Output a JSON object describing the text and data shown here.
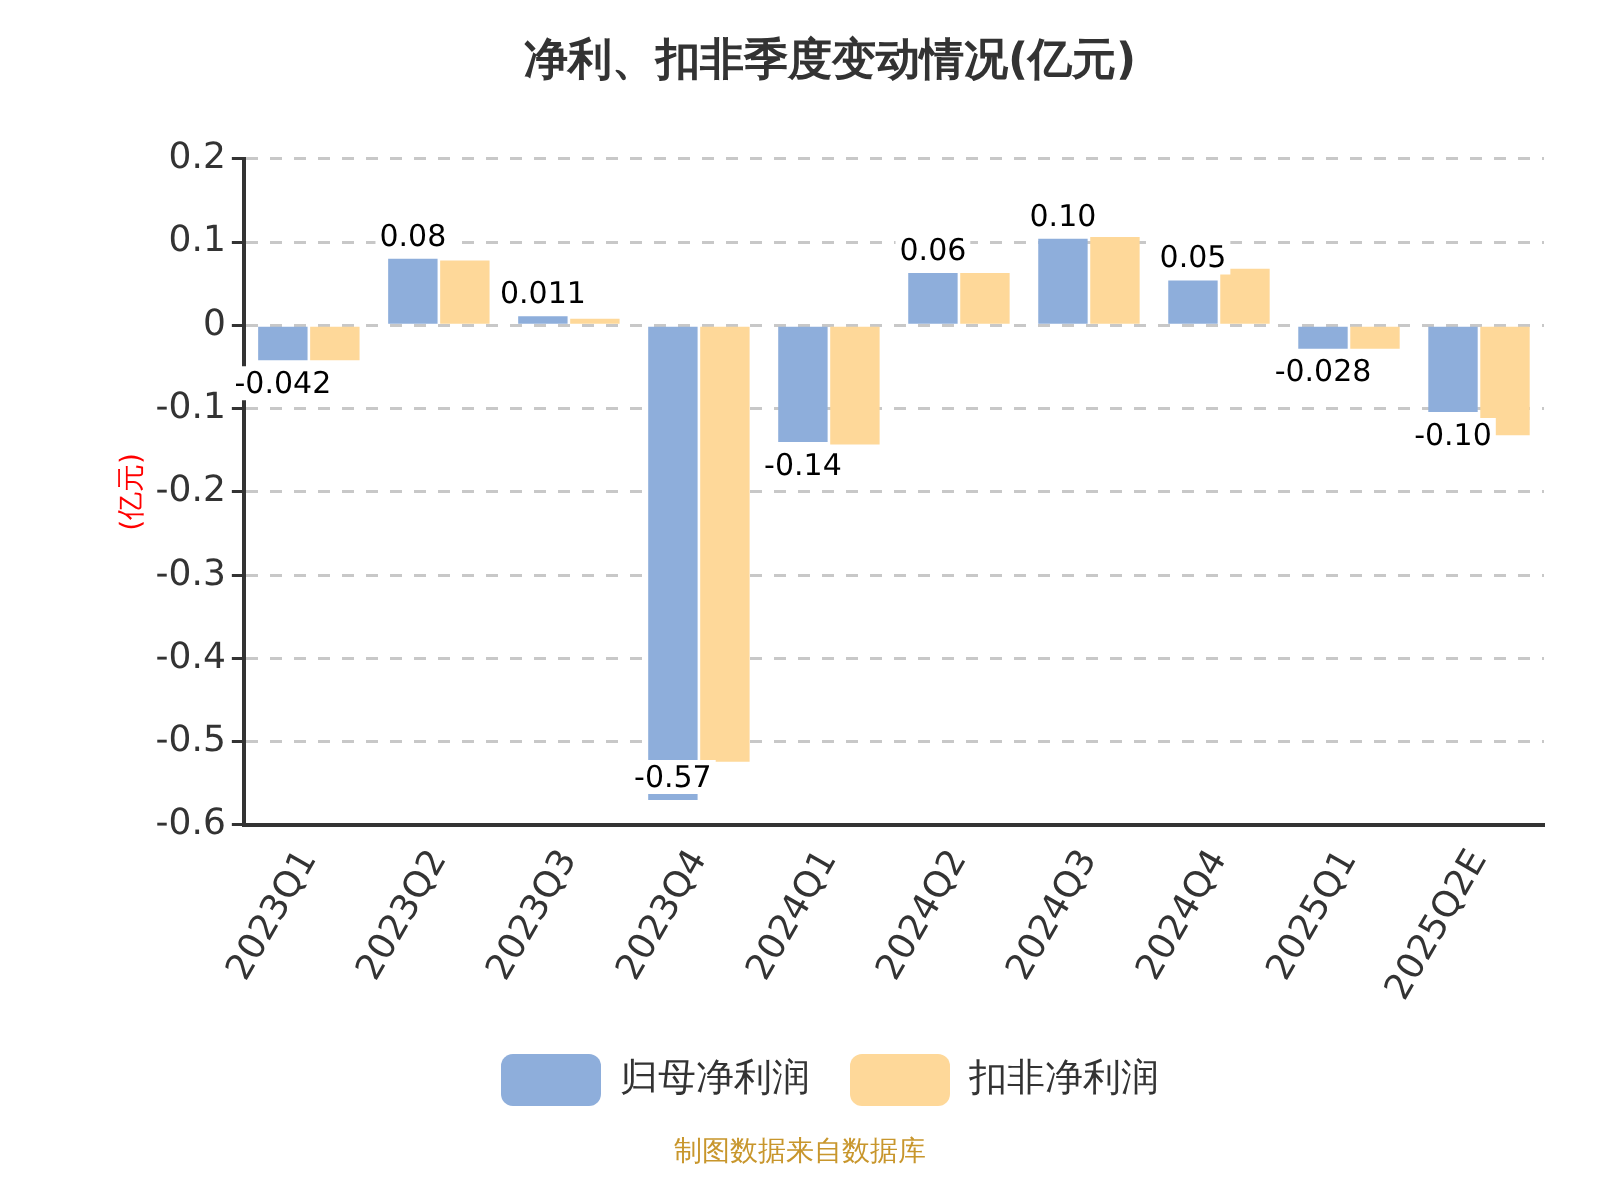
{
  "chart_data": {
    "type": "bar",
    "title": "净利、扣非季度变动情况(亿元)",
    "ylabel": "(亿元)",
    "categories": [
      "2023Q1",
      "2023Q2",
      "2023Q3",
      "2023Q4",
      "2024Q1",
      "2024Q2",
      "2024Q3",
      "2024Q4",
      "2025Q1",
      "2025Q2E"
    ],
    "series": [
      {
        "name": "归母净利润",
        "color": "#8eaedb",
        "values": [
          -0.042,
          0.08,
          0.011,
          -0.57,
          -0.14,
          0.063,
          0.104,
          0.054,
          -0.028,
          -0.104
        ],
        "value_labels": [
          "-0.042",
          "0.08",
          "0.011",
          "-0.57",
          "-0.14",
          "0.06",
          "0.10",
          "0.05",
          "-0.028",
          "-0.10"
        ]
      },
      {
        "name": "扣非净利润",
        "color": "#fed899",
        "values": [
          -0.042,
          0.078,
          0.008,
          -0.524,
          -0.143,
          0.063,
          0.106,
          0.068,
          -0.028,
          -0.132
        ]
      }
    ],
    "ylim": [
      -0.6,
      0.2
    ],
    "yticks": [
      -0.6,
      -0.5,
      -0.4,
      -0.3,
      -0.2,
      -0.1,
      0,
      0.1,
      0.2
    ],
    "grid": "y",
    "legend": "bottom",
    "annotations": [
      "制图数据来自数据库"
    ]
  }
}
